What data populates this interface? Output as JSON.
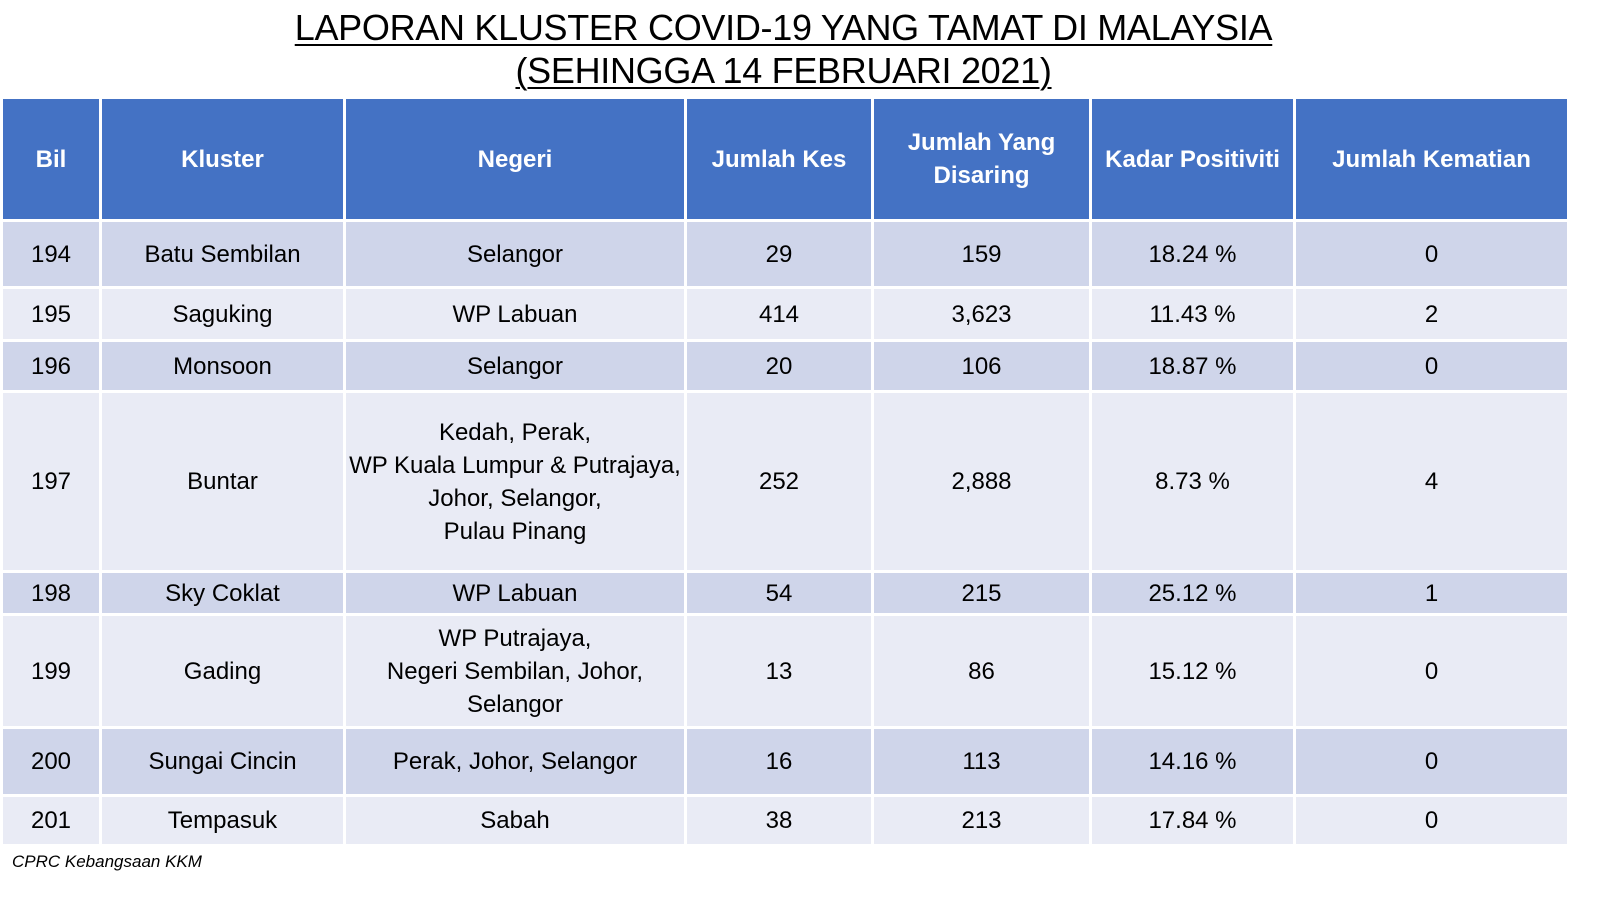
{
  "title": {
    "line1": "LAPORAN KLUSTER COVID-19 YANG TAMAT DI MALAYSIA",
    "line2": "(SEHINGGA 14 FEBRUARI 2021)"
  },
  "table": {
    "headers": [
      "Bil",
      "Kluster",
      "Negeri",
      "Jumlah Kes",
      "Jumlah Yang Disaring",
      "Kadar Positiviti",
      "Jumlah Kematian"
    ],
    "header_colors": {
      "header_bg": "#4472c4",
      "row_odd": "#cfd5ea",
      "row_even": "#e9ebf5"
    },
    "rows": [
      {
        "bil": "194",
        "kluster": "Batu Sembilan",
        "negeri": [
          "Selangor"
        ],
        "kes": "29",
        "disaring": "159",
        "positiviti": "18.24 %",
        "kematian": "0"
      },
      {
        "bil": "195",
        "kluster": "Saguking",
        "negeri": [
          "WP Labuan"
        ],
        "kes": "414",
        "disaring": "3,623",
        "positiviti": "11.43 %",
        "kematian": "2"
      },
      {
        "bil": "196",
        "kluster": "Monsoon",
        "negeri": [
          "Selangor"
        ],
        "kes": "20",
        "disaring": "106",
        "positiviti": "18.87 %",
        "kematian": "0"
      },
      {
        "bil": "197",
        "kluster": "Buntar",
        "negeri": [
          "Kedah, Perak,",
          "WP Kuala Lumpur & Putrajaya,",
          "Johor, Selangor,",
          "Pulau Pinang"
        ],
        "kes": "252",
        "disaring": "2,888",
        "positiviti": "8.73 %",
        "kematian": "4"
      },
      {
        "bil": "198",
        "kluster": "Sky Coklat",
        "negeri": [
          "WP Labuan"
        ],
        "kes": "54",
        "disaring": "215",
        "positiviti": "25.12 %",
        "kematian": "1"
      },
      {
        "bil": "199",
        "kluster": "Gading",
        "negeri": [
          "WP Putrajaya,",
          "Negeri Sembilan, Johor,",
          "Selangor"
        ],
        "kes": "13",
        "disaring": "86",
        "positiviti": "15.12 %",
        "kematian": "0"
      },
      {
        "bil": "200",
        "kluster": "Sungai Cincin",
        "negeri": [
          "Perak, Johor, Selangor"
        ],
        "kes": "16",
        "disaring": "113",
        "positiviti": "14.16 %",
        "kematian": "0"
      },
      {
        "bil": "201",
        "kluster": "Tempasuk",
        "negeri": [
          "Sabah"
        ],
        "kes": "38",
        "disaring": "213",
        "positiviti": "17.84 %",
        "kematian": "0"
      }
    ]
  },
  "footer": "CPRC Kebangsaan KKM"
}
